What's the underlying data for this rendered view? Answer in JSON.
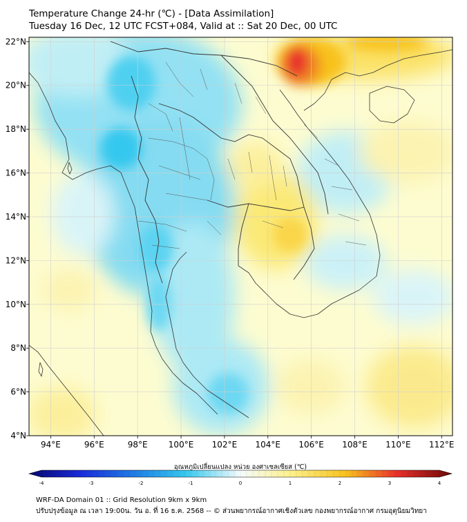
{
  "header": {
    "title": "Temperature Change 24-hr (℃) - [Data Assimilation]",
    "subtitle": "Tuesday 16 Dec, 12 UTC FCST+084, Valid at :: Sat 20 Dec, 00 UTC"
  },
  "map": {
    "lon_range": [
      93,
      112.5
    ],
    "lat_range": [
      4,
      22.2
    ],
    "lon_ticks": [
      "94°E",
      "96°E",
      "98°E",
      "100°E",
      "102°E",
      "104°E",
      "106°E",
      "108°E",
      "110°E",
      "112°E"
    ],
    "lat_ticks": [
      "22°N",
      "20°N",
      "18°N",
      "16°N",
      "14°N",
      "12°N",
      "10°N",
      "8°N",
      "6°N",
      "4°N"
    ],
    "background_color": "#fdfcd0",
    "warm_core": "#e8302a",
    "cool_core": "#35c8ee"
  },
  "colorbar": {
    "label": "อุณหภูมิเปลี่ยนแปลง หน่วย องศาเซลเซียส (℃)",
    "ticks": [
      "-4",
      "-3",
      "-2",
      "-1",
      "0",
      "1",
      "2",
      "3",
      "4"
    ],
    "range": [
      -4,
      4
    ]
  },
  "footer": {
    "line1": "WRF-DA Domain 01 :: Grid Resolution 9km x 9km",
    "line2": "ปรับปรุงข้อมูล ณ เวลา 19:00น. วัน อ. ที่ 16 ธ.ค. 2568 -- © ส่วนพยากรณ์อากาศเชิงตัวเลข กองพยากรณ์อากาศ กรมอุตุนิยมวิทยา"
  }
}
